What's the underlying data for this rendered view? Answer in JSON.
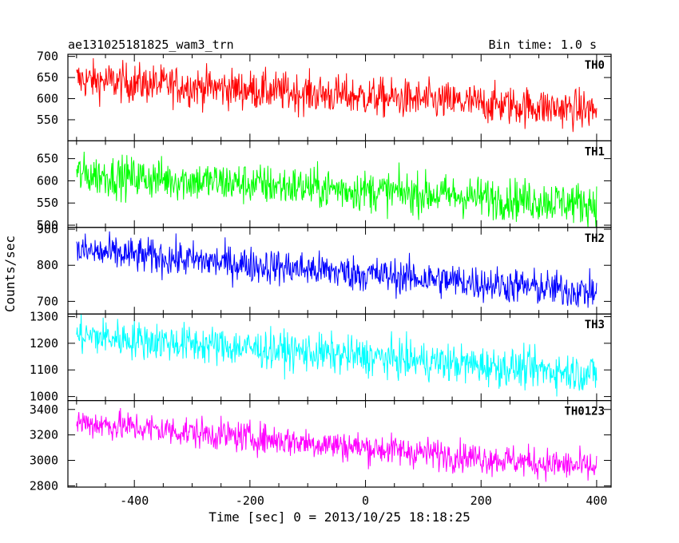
{
  "header": {
    "title": "ae131025181825_wam3_trn",
    "bin_time": "Bin time: 1.0 s"
  },
  "axes": {
    "xlabel": "Time [sec] 0 = 2013/10/25 18:18:25",
    "ylabel": "Counts/sec"
  },
  "chart_data": {
    "type": "line",
    "layout": "stacked-panels",
    "title": "ae131025181825_wam3_trn",
    "subtitle": "Bin time: 1.0 s",
    "xlabel": "Time [sec] 0 = 2013/10/25 18:18:25",
    "ylabel": "Counts/sec",
    "xlim": [
      -515,
      425
    ],
    "x_ticks": [
      -400,
      -200,
      0,
      200,
      400
    ],
    "x_range_data": [
      -500,
      400
    ],
    "bin_seconds": 1.0,
    "grid": false,
    "panels": [
      {
        "name": "TH0",
        "color": "#ff0000",
        "ylim": [
          500,
          705
        ],
        "yticks": [
          550,
          600,
          650,
          700
        ],
        "trend_start": 645,
        "trend_end": 572,
        "noise_halfwidth": 42
      },
      {
        "name": "TH1",
        "color": "#00ff00",
        "ylim": [
          495,
          690
        ],
        "yticks": [
          500,
          550,
          600,
          650
        ],
        "trend_start": 615,
        "trend_end": 548,
        "noise_halfwidth": 42
      },
      {
        "name": "TH2",
        "color": "#0000ff",
        "ylim": [
          665,
          905
        ],
        "yticks": [
          700,
          800,
          900
        ],
        "trend_start": 840,
        "trend_end": 725,
        "noise_halfwidth": 45
      },
      {
        "name": "TH3",
        "color": "#00ffff",
        "ylim": [
          985,
          1310
        ],
        "yticks": [
          1000,
          1100,
          1200,
          1300
        ],
        "trend_start": 1230,
        "trend_end": 1085,
        "noise_halfwidth": 65
      },
      {
        "name": "TH0123",
        "color": "#ff00ff",
        "ylim": [
          2790,
          3470
        ],
        "yticks": [
          2800,
          3000,
          3200,
          3400
        ],
        "trend_start": 3300,
        "trend_end": 2940,
        "noise_halfwidth": 110
      }
    ]
  }
}
